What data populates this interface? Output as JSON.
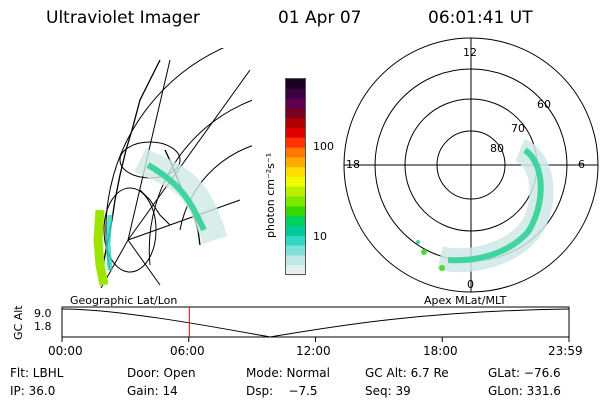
{
  "header": {
    "title": "Ultraviolet Imager",
    "date": "01 Apr 07",
    "time": "06:01:41  UT"
  },
  "colorbar": {
    "label": "photon cm⁻²s⁻¹",
    "ticks": [
      "100",
      "10"
    ],
    "colors": [
      "#1a0022",
      "#3a0040",
      "#5e0050",
      "#7a0020",
      "#b00000",
      "#e00000",
      "#ff3300",
      "#ff7700",
      "#ffaa00",
      "#ffdd00",
      "#eeff00",
      "#b8f000",
      "#7de800",
      "#35d800",
      "#00d060",
      "#00cc99",
      "#30d8c0",
      "#80e0d8",
      "#c0e8e4",
      "#e6eeee"
    ]
  },
  "polar": {
    "clock_labels": {
      "top": "12",
      "left": "18",
      "right": "6",
      "bottom": "0"
    },
    "lat_labels": [
      "60",
      "70",
      "80"
    ]
  },
  "map_labels": {
    "left": "Geographic Lat/Lon",
    "right": "Apex  MLat/MLT"
  },
  "timeline": {
    "ylabel": "GC Alt",
    "yticks": [
      "9.0",
      "1.8"
    ],
    "xticks": [
      "00:00",
      "06:00",
      "12:00",
      "18:00",
      "23:59"
    ],
    "current_time_fraction": 0.2512,
    "marker_color": "#ff0000"
  },
  "info": {
    "row1": [
      "Flt: LBHL",
      "Door: Open",
      "Mode: Normal",
      "GC Alt: 6.7 Re",
      "GLat: −76.6"
    ],
    "row2": [
      "IP: 36.0",
      "Gain: 14",
      "Dsp:    −7.5",
      "Seq: 39",
      "GLon: 331.6"
    ]
  }
}
